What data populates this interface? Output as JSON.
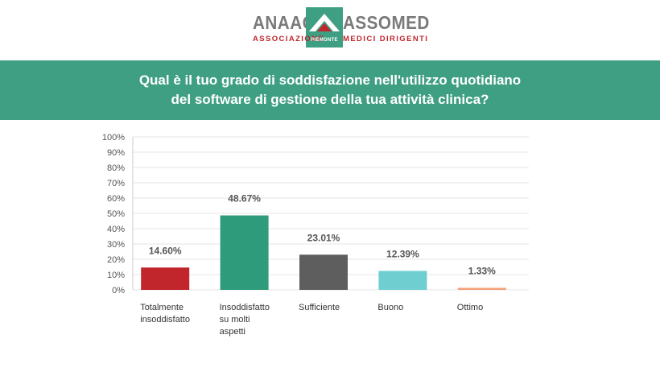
{
  "logo": {
    "word_left": "ANAAO",
    "word_right": "ASSOMED",
    "sub_left": "ASSOCIAZIONE",
    "sub_center": "PIEMONTE",
    "sub_right": "MEDICI DIRIGENTI",
    "brand_red": "#c0262c",
    "brand_green": "#3f9f82"
  },
  "banner": {
    "line1": "Qual è il tuo grado di soddisfazione nell'utilizzo quotidiano",
    "line2": "del software di gestione della tua attività clinica?",
    "color": "#3f9f82"
  },
  "chart_data": {
    "type": "bar",
    "categories": [
      [
        "Totalmente",
        "insoddisfatto"
      ],
      [
        "Insoddisfatto",
        "su molti",
        "aspetti"
      ],
      [
        "Sufficiente"
      ],
      [
        "Buono"
      ],
      [
        "Ottimo"
      ]
    ],
    "values": [
      14.6,
      48.67,
      23.01,
      12.39,
      1.33
    ],
    "value_labels": [
      "14.60%",
      "48.67%",
      "23.01%",
      "12.39%",
      "1.33%"
    ],
    "colors": [
      "#c0262c",
      "#2e9b7a",
      "#5e5e5e",
      "#6fcfd0",
      "#f4a07a"
    ],
    "yticks": [
      "0%",
      "10%",
      "20%",
      "30%",
      "40%",
      "50%",
      "60%",
      "70%",
      "80%",
      "90%",
      "100%"
    ],
    "ylim": [
      0,
      100
    ],
    "grid": true
  }
}
